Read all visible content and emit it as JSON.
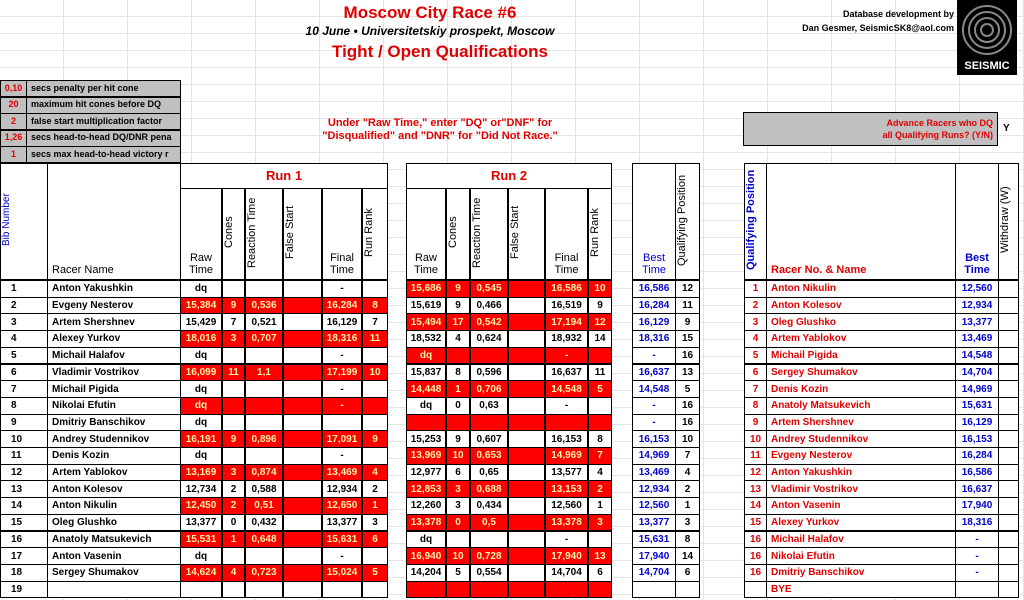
{
  "header": {
    "title": "Moscow City Race #6",
    "date": "10 June • Universitetskiy prospekt, Moscow",
    "subtitle": "Tight / Open Qualifications",
    "credit": [
      "Database development by",
      "Dan Gesmer, SeismicSK8@aol.com"
    ],
    "logo": "SEISMIC"
  },
  "settings": [
    [
      "0,10",
      "secs penalty per hit cone"
    ],
    [
      "20",
      "maximum hit cones before DQ"
    ],
    [
      "2",
      "false start multiplication factor"
    ],
    [
      "1,26",
      "secs head-to-head DQ/DNR pena"
    ],
    [
      "1",
      "secs max head-to-head victory r"
    ]
  ],
  "note": [
    "Under \"Raw Time,\" enter \"DQ\" or\"DNF\" for",
    "\"Disqualified\" and \"DNR\" for \"Did Not Race.\""
  ],
  "advance": {
    "label": [
      "Advance Racers who DQ",
      "all Qualifying Runs? (Y/N)"
    ],
    "value": "Y"
  },
  "runs": [
    "Run 1",
    "Run 2"
  ],
  "columns": {
    "bib": "Bib Number",
    "name": "Racer Name",
    "run": [
      "Raw Time",
      "Cones",
      "Reaction Time",
      "False Start",
      "Final Time",
      "Run Rank"
    ],
    "best": "Best Time",
    "qpos": "Qualifying Position",
    "right_name": "Racer No. & Name",
    "withdraw": "Withdraw (W)"
  },
  "rows": [
    [
      1,
      "Anton Yakushkin",
      "dq",
      null,
      null,
      null,
      "-",
      null,
      "15,686",
      9,
      "0,545",
      null,
      "16,586",
      10,
      "16,586",
      12
    ],
    [
      2,
      "Evgeny Nesterov",
      "15,384",
      9,
      "0,536",
      null,
      "16,284",
      8,
      "15,619",
      9,
      "0,466",
      null,
      "16,519",
      9,
      "16,284",
      11
    ],
    [
      3,
      "Artem Shershnev",
      "15,429",
      7,
      "0,521",
      null,
      "16,129",
      7,
      "15,494",
      17,
      "0,542",
      null,
      "17,194",
      12,
      "16,129",
      9
    ],
    [
      4,
      "Alexey Yurkov",
      "18,016",
      3,
      "0,707",
      null,
      "18,316",
      11,
      "18,532",
      4,
      "0,624",
      null,
      "18,932",
      14,
      "18,316",
      15
    ],
    [
      5,
      "Michail Halafov",
      "dq",
      null,
      null,
      null,
      "-",
      null,
      "dq",
      null,
      null,
      null,
      "-",
      null,
      "-",
      16
    ],
    [
      6,
      "Vladimir Vostrikov",
      "16,099",
      11,
      "1,1",
      null,
      "17,199",
      10,
      "15,837",
      8,
      "0,596",
      null,
      "16,637",
      11,
      "16,637",
      13
    ],
    [
      7,
      "Michail Pigida",
      "dq",
      null,
      null,
      null,
      "-",
      null,
      "14,448",
      1,
      "0,706",
      null,
      "14,548",
      5,
      "14,548",
      5
    ],
    [
      8,
      "Nikolai Efutin",
      "dq",
      null,
      null,
      null,
      "-",
      null,
      "dq",
      0,
      "0,63",
      null,
      "-",
      null,
      "-",
      16
    ],
    [
      9,
      "Dmitriy Banschikov",
      "dq",
      null,
      null,
      null,
      null,
      null,
      null,
      null,
      null,
      null,
      null,
      null,
      "-",
      16
    ],
    [
      10,
      "Andrey Studennikov",
      "16,191",
      9,
      "0,896",
      null,
      "17,091",
      9,
      "15,253",
      9,
      "0,607",
      null,
      "16,153",
      8,
      "16,153",
      10
    ],
    [
      11,
      "Denis Kozin",
      "dq",
      null,
      null,
      null,
      "-",
      null,
      "13,969",
      10,
      "0,653",
      null,
      "14,969",
      7,
      "14,969",
      7
    ],
    [
      12,
      "Artem Yablokov",
      "13,169",
      3,
      "0,874",
      null,
      "13,469",
      4,
      "12,977",
      6,
      "0,65",
      null,
      "13,577",
      4,
      "13,469",
      4
    ],
    [
      13,
      "Anton Kolesov",
      "12,734",
      2,
      "0,588",
      null,
      "12,934",
      2,
      "12,853",
      3,
      "0,688",
      null,
      "13,153",
      2,
      "12,934",
      2
    ],
    [
      14,
      "Anton Nikulin",
      "12,450",
      2,
      "0,51",
      null,
      "12,650",
      1,
      "12,260",
      3,
      "0,434",
      null,
      "12,560",
      1,
      "12,560",
      1
    ],
    [
      15,
      "Oleg Glushko",
      "13,377",
      0,
      "0,432",
      null,
      "13,377",
      3,
      "13,378",
      0,
      "0,5",
      null,
      "13,378",
      3,
      "13,377",
      3
    ],
    [
      16,
      "Anatoly Matsukevich",
      "15,531",
      1,
      "0,648",
      null,
      "15,631",
      6,
      "dq",
      null,
      null,
      null,
      "-",
      null,
      "15,631",
      8
    ],
    [
      17,
      "Anton Vasenin",
      "dq",
      null,
      null,
      null,
      "-",
      null,
      "16,940",
      10,
      "0,728",
      null,
      "17,940",
      13,
      "17,940",
      14
    ],
    [
      18,
      "Sergey Shumakov",
      "14,624",
      4,
      "0,723",
      null,
      "15,024",
      5,
      "14,204",
      5,
      "0,554",
      null,
      "14,704",
      6,
      "14,704",
      6
    ],
    [
      19,
      null,
      null,
      null,
      null,
      null,
      null,
      null,
      null,
      null,
      null,
      null,
      null,
      null,
      null,
      null
    ]
  ],
  "qualifying": [
    [
      1,
      "Anton Nikulin",
      "12,560"
    ],
    [
      2,
      "Anton Kolesov",
      "12,934"
    ],
    [
      3,
      "Oleg Glushko",
      "13,377"
    ],
    [
      4,
      "Artem Yablokov",
      "13,469"
    ],
    [
      5,
      "Michail Pigida",
      "14,548"
    ],
    [
      6,
      "Sergey Shumakov",
      "14,704"
    ],
    [
      7,
      "Denis Kozin",
      "14,969"
    ],
    [
      8,
      "Anatoly Matsukevich",
      "15,631"
    ],
    [
      9,
      "Artem Shershnev",
      "16,129"
    ],
    [
      10,
      "Andrey Studennikov",
      "16,153"
    ],
    [
      11,
      "Evgeny Nesterov",
      "16,284"
    ],
    [
      12,
      "Anton Yakushkin",
      "16,586"
    ],
    [
      13,
      "Vladimir Vostrikov",
      "16,637"
    ],
    [
      14,
      "Anton Vasenin",
      "17,940"
    ],
    [
      15,
      "Alexey Yurkov",
      "18,316"
    ],
    [
      16,
      "Michail Halafov",
      "-"
    ],
    [
      16,
      "Nikolai Efutin",
      "-"
    ],
    [
      16,
      "Dmitriy Banschikov",
      "-"
    ],
    [
      null,
      "BYE",
      null
    ]
  ]
}
